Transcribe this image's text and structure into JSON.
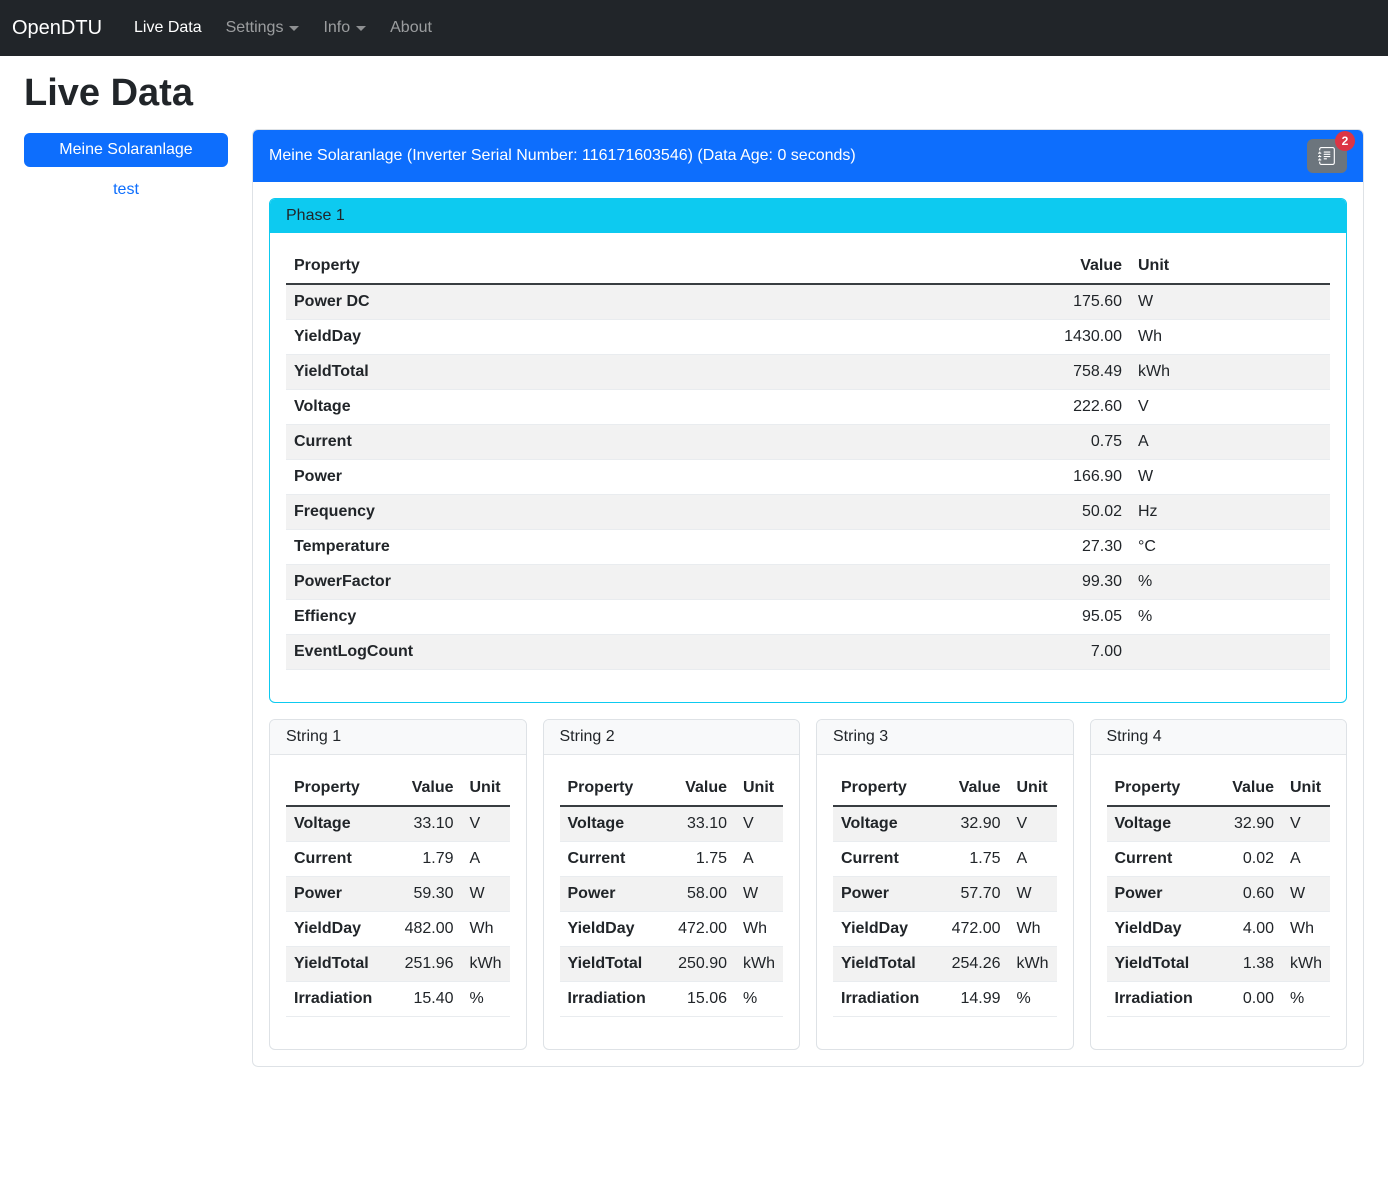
{
  "navbar": {
    "brand": "OpenDTU",
    "items": [
      {
        "label": "Live Data",
        "active": true,
        "dropdown": false
      },
      {
        "label": "Settings",
        "active": false,
        "dropdown": true
      },
      {
        "label": "Info",
        "active": false,
        "dropdown": true
      },
      {
        "label": "About",
        "active": false,
        "dropdown": false
      }
    ]
  },
  "page": {
    "title": "Live Data"
  },
  "sidebar": {
    "inverter_button_label": "Meine Solaranlage",
    "link_label": "test"
  },
  "panel": {
    "header_title": "Meine Solaranlage (Inverter Serial Number: 116171603546) (Data Age: 0 seconds)",
    "eventlog_badge_count": "2",
    "eventlog_icon": "journal-text-icon"
  },
  "phase": {
    "title": "Phase 1",
    "columns": [
      "Property",
      "Value",
      "Unit"
    ],
    "rows": [
      {
        "property": "Power DC",
        "value": "175.60",
        "unit": "W"
      },
      {
        "property": "YieldDay",
        "value": "1430.00",
        "unit": "Wh"
      },
      {
        "property": "YieldTotal",
        "value": "758.49",
        "unit": "kWh"
      },
      {
        "property": "Voltage",
        "value": "222.60",
        "unit": "V"
      },
      {
        "property": "Current",
        "value": "0.75",
        "unit": "A"
      },
      {
        "property": "Power",
        "value": "166.90",
        "unit": "W"
      },
      {
        "property": "Frequency",
        "value": "50.02",
        "unit": "Hz"
      },
      {
        "property": "Temperature",
        "value": "27.30",
        "unit": "°C"
      },
      {
        "property": "PowerFactor",
        "value": "99.30",
        "unit": "%"
      },
      {
        "property": "Effiency",
        "value": "95.05",
        "unit": "%"
      },
      {
        "property": "EventLogCount",
        "value": "7.00",
        "unit": ""
      }
    ]
  },
  "strings": [
    {
      "title": "String 1",
      "columns": [
        "Property",
        "Value",
        "Unit"
      ],
      "rows": [
        {
          "property": "Voltage",
          "value": "33.10",
          "unit": "V"
        },
        {
          "property": "Current",
          "value": "1.79",
          "unit": "A"
        },
        {
          "property": "Power",
          "value": "59.30",
          "unit": "W"
        },
        {
          "property": "YieldDay",
          "value": "482.00",
          "unit": "Wh"
        },
        {
          "property": "YieldTotal",
          "value": "251.96",
          "unit": "kWh"
        },
        {
          "property": "Irradiation",
          "value": "15.40",
          "unit": "%"
        }
      ]
    },
    {
      "title": "String 2",
      "columns": [
        "Property",
        "Value",
        "Unit"
      ],
      "rows": [
        {
          "property": "Voltage",
          "value": "33.10",
          "unit": "V"
        },
        {
          "property": "Current",
          "value": "1.75",
          "unit": "A"
        },
        {
          "property": "Power",
          "value": "58.00",
          "unit": "W"
        },
        {
          "property": "YieldDay",
          "value": "472.00",
          "unit": "Wh"
        },
        {
          "property": "YieldTotal",
          "value": "250.90",
          "unit": "kWh"
        },
        {
          "property": "Irradiation",
          "value": "15.06",
          "unit": "%"
        }
      ]
    },
    {
      "title": "String 3",
      "columns": [
        "Property",
        "Value",
        "Unit"
      ],
      "rows": [
        {
          "property": "Voltage",
          "value": "32.90",
          "unit": "V"
        },
        {
          "property": "Current",
          "value": "1.75",
          "unit": "A"
        },
        {
          "property": "Power",
          "value": "57.70",
          "unit": "W"
        },
        {
          "property": "YieldDay",
          "value": "472.00",
          "unit": "Wh"
        },
        {
          "property": "YieldTotal",
          "value": "254.26",
          "unit": "kWh"
        },
        {
          "property": "Irradiation",
          "value": "14.99",
          "unit": "%"
        }
      ]
    },
    {
      "title": "String 4",
      "columns": [
        "Property",
        "Value",
        "Unit"
      ],
      "rows": [
        {
          "property": "Voltage",
          "value": "32.90",
          "unit": "V"
        },
        {
          "property": "Current",
          "value": "0.02",
          "unit": "A"
        },
        {
          "property": "Power",
          "value": "0.60",
          "unit": "W"
        },
        {
          "property": "YieldDay",
          "value": "4.00",
          "unit": "Wh"
        },
        {
          "property": "YieldTotal",
          "value": "1.38",
          "unit": "kWh"
        },
        {
          "property": "Irradiation",
          "value": "0.00",
          "unit": "%"
        }
      ]
    }
  ],
  "colors": {
    "navbar_bg": "#212529",
    "primary": "#0d6efd",
    "info": "#0dcaf0",
    "badge_red": "#dc3545",
    "button_gray": "#6c757d",
    "stripe": "#f2f2f2"
  }
}
